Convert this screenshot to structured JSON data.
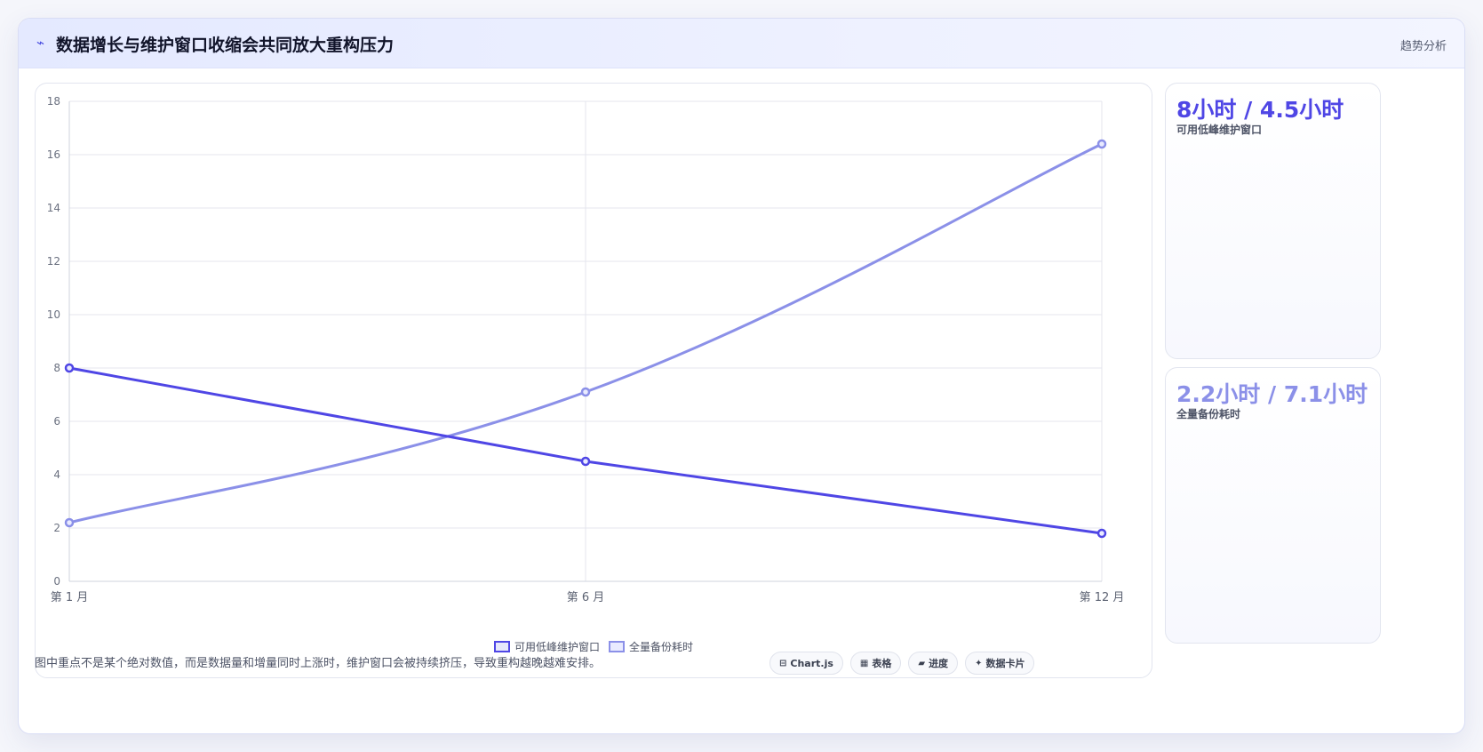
{
  "header": {
    "icon": "trend-line-icon",
    "title": "数据增长与维护窗口收缩会共同放大重构压力",
    "tag": "趋势分析"
  },
  "chart_data": {
    "type": "line",
    "x": [
      "第 1 月",
      "第 6 月",
      "第 12 月"
    ],
    "ylim": [
      0,
      18
    ],
    "yticks": [
      0,
      2,
      4,
      6,
      8,
      10,
      12,
      14,
      16,
      18
    ],
    "grid": true,
    "legend_position": "bottom",
    "series": [
      {
        "name": "可用低峰维护窗口",
        "values": [
          8,
          4.5,
          1.8
        ],
        "color": "#4f46e5"
      },
      {
        "name": "全量备份耗时",
        "values": [
          2.2,
          7.1,
          16.4
        ],
        "color": "#8b90e8"
      }
    ]
  },
  "stats": [
    {
      "value": "8小时 / 4.5小时",
      "label": "可用低峰维护窗口",
      "color": "#4f46e5"
    },
    {
      "value": "2.2小时 / 7.1小时",
      "label": "全量备份耗时",
      "color": "#8b90e8"
    }
  ],
  "footnote": "图中重点不是某个绝对数值，而是数据量和增量同时上涨时，维护窗口会被持续挤压，导致重构越晚越难安排。",
  "chips": [
    {
      "icon": "chart-icon",
      "glyph": "⊟",
      "label": "Chart.js"
    },
    {
      "icon": "table-icon",
      "glyph": "▦",
      "label": "表格"
    },
    {
      "icon": "progress-icon",
      "glyph": "▰",
      "label": "进度"
    },
    {
      "icon": "card-icon",
      "glyph": "✦",
      "label": "数据卡片"
    }
  ]
}
